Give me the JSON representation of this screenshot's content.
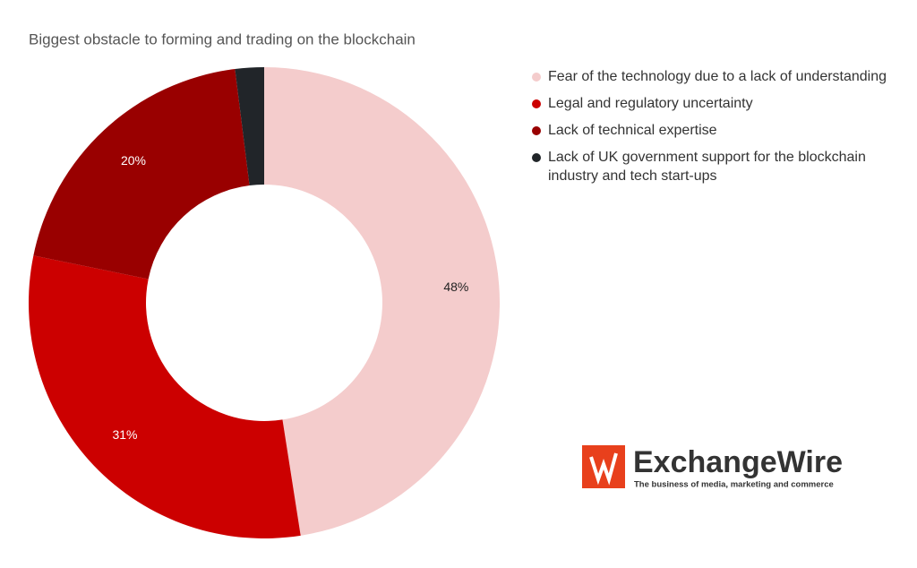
{
  "chart_data": {
    "type": "donut",
    "title": "Biggest obstacle to forming and trading on the blockchain",
    "categories": [
      "Fear of the technology due to a lack of understanding",
      "Legal and regulatory uncertainty",
      "Lack of technical expertise",
      "Lack of UK government support for the blockchain industry and tech start-ups"
    ],
    "values": [
      48,
      31,
      20,
      2
    ],
    "value_labels": [
      "48%",
      "31%",
      "20%",
      null
    ],
    "colors": [
      "#f4cccc",
      "#cc0000",
      "#990000",
      "#212529"
    ],
    "label_colors": [
      "#222222",
      "#ffffff",
      "#ffffff",
      "#ffffff"
    ],
    "legend": "right"
  },
  "logo": {
    "name": "ExchangeWire",
    "tagline": "The business of media, marketing and commerce"
  }
}
